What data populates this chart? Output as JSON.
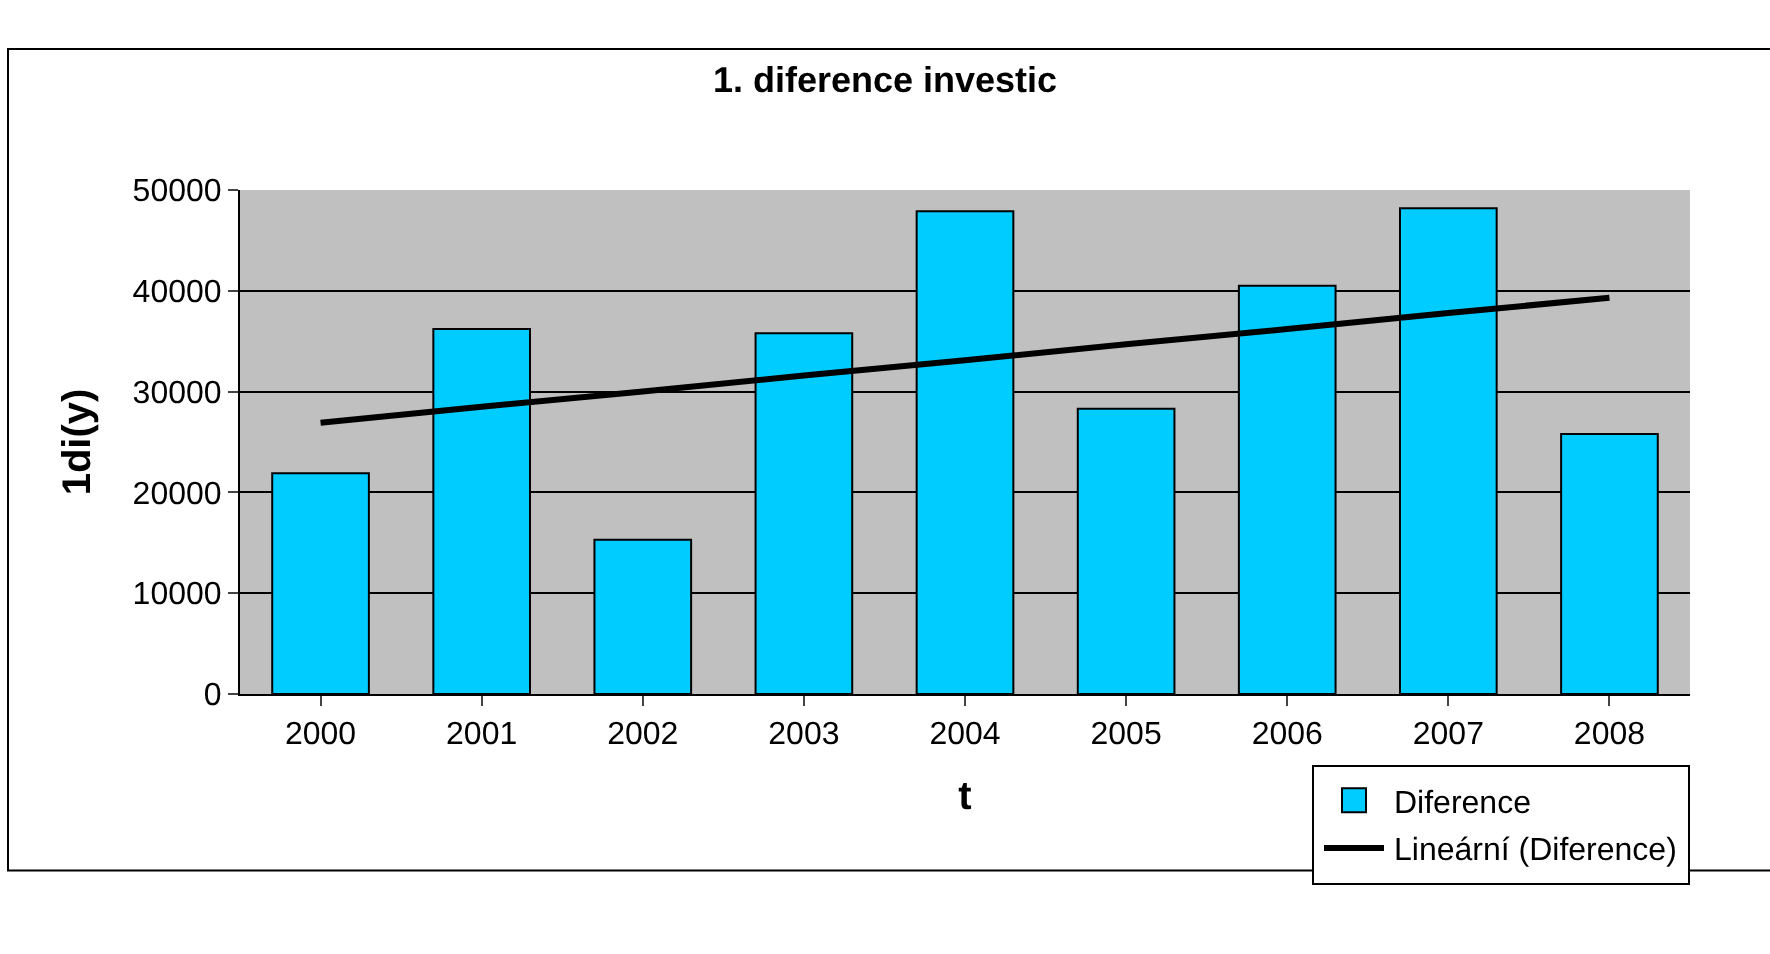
{
  "chart_data": {
    "type": "bar",
    "title": "1. diference investic",
    "xlabel": "t",
    "ylabel": "1di(y)",
    "categories": [
      "2000",
      "2001",
      "2002",
      "2003",
      "2004",
      "2005",
      "2006",
      "2007",
      "2008"
    ],
    "series": [
      {
        "name": "Diference",
        "color": "#00ccff",
        "values": [
          21900,
          36200,
          15300,
          35800,
          47900,
          28300,
          40500,
          48200,
          25800
        ]
      },
      {
        "name": "Lineární (Diference)",
        "type": "line",
        "color": "#000000",
        "values": [
          26900,
          28500,
          30000,
          31600,
          33100,
          34700,
          36200,
          37800,
          39300
        ]
      }
    ],
    "ylim": [
      0,
      50000
    ],
    "yticks": [
      0,
      10000,
      20000,
      30000,
      40000,
      50000
    ],
    "grid": "y",
    "legend": "bottom right"
  }
}
